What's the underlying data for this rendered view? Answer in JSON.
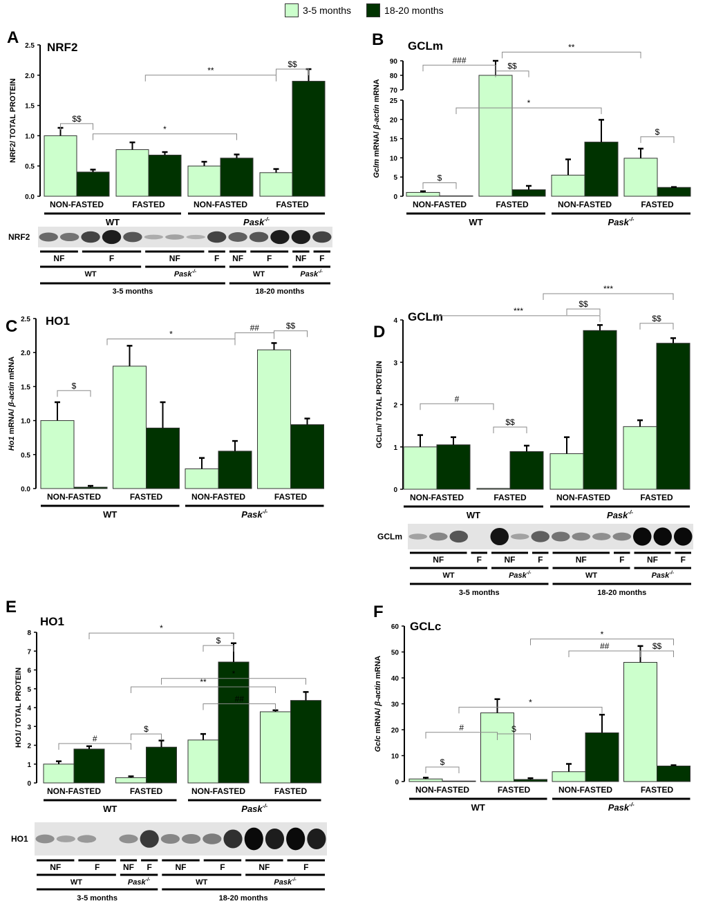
{
  "legend": {
    "items": [
      {
        "label": "3-5 months",
        "color": "#ccffcc"
      },
      {
        "label": "18-20 months",
        "color": "#003300"
      }
    ]
  },
  "colors": {
    "young": "#ccffcc",
    "old": "#003300",
    "bracket": "#888888"
  },
  "categories": [
    "NON-FASTED",
    "FASTED",
    "NON-FASTED",
    "FASTED"
  ],
  "genotypes": {
    "wt": "WT",
    "ko": "Pask",
    "ko_sup": "-/-"
  },
  "chart_data": [
    {
      "id": "A",
      "type": "bar",
      "letter": "A",
      "title": "NRF2",
      "ylabel": "NRF2/ TOTAL PROTEIN",
      "ylabel_italic": "",
      "ylim": [
        0,
        2.5
      ],
      "yticks": [
        "0.0",
        "0.5",
        "1.0",
        "1.5",
        "2.0",
        "2.5"
      ],
      "tickvals": [
        0,
        0.5,
        1,
        1.5,
        2,
        2.5
      ],
      "series": [
        {
          "name": "3-5 months",
          "values": [
            1.0,
            0.77,
            0.5,
            0.39
          ],
          "errors": [
            0.13,
            0.12,
            0.07,
            0.06
          ]
        },
        {
          "name": "18-20 months",
          "values": [
            0.4,
            0.68,
            0.63,
            1.9
          ],
          "errors": [
            0.04,
            0.05,
            0.06,
            0.2
          ]
        }
      ],
      "annotations": [
        {
          "label": "$$",
          "from": 0,
          "to": 1,
          "level": 1.2
        },
        {
          "label": "*",
          "from": 1,
          "to": 5,
          "level": 1.03
        },
        {
          "label": "**",
          "from": 2.4,
          "to": 6,
          "level": 2.0
        },
        {
          "label": "$$",
          "from": 6,
          "to": 7,
          "level": 2.1
        }
      ],
      "blot": {
        "label": "NRF2",
        "bands": [
          0.5,
          0.45,
          0.7,
          0.9,
          0.6,
          0.15,
          0.2,
          0.12,
          0.7,
          0.55,
          0.6,
          0.9,
          0.9,
          0.7
        ],
        "rows": [
          [
            {
              "label": "NF",
              "span": 2
            },
            {
              "label": "F",
              "span": 3
            },
            {
              "label": "NF",
              "span": 3
            },
            {
              "label": "F",
              "span": 1
            },
            {
              "label": "NF",
              "span": 1
            },
            {
              "label": "F",
              "span": 2
            },
            {
              "label": "NF",
              "span": 1
            },
            {
              "label": "F",
              "span": 1
            }
          ],
          [
            {
              "label": "WT",
              "span": 5
            },
            {
              "label": "Pask",
              "sup": "-/-",
              "span": 4
            },
            {
              "label": "WT",
              "span": 3
            },
            {
              "label": "Pask",
              "sup": "-/-",
              "span": 2
            }
          ],
          [
            {
              "label": "3-5 months",
              "span": 9
            },
            {
              "label": "18-20 months",
              "span": 5
            }
          ]
        ]
      }
    },
    {
      "id": "B",
      "type": "bar",
      "letter": "B",
      "title": "GCLm",
      "ylabel": " mRNA/ ",
      "ylabel_italic": "Gclm",
      "ylabel_italic2": "β-actin",
      "ylabel_tail": " mRNA",
      "ylim": [
        0,
        90
      ],
      "broken_axis": [
        25,
        70
      ],
      "yticks": [
        "0",
        "5",
        "10",
        "15",
        "20",
        "25",
        "70",
        "80",
        "90"
      ],
      "tickvals": [
        0,
        5,
        10,
        15,
        20,
        25,
        70,
        80,
        90
      ],
      "series": [
        {
          "name": "3-5 months",
          "values": [
            1.0,
            80,
            5.5,
            9.9
          ],
          "errors": [
            0.3,
            10,
            4.1,
            2.5
          ]
        },
        {
          "name": "18-20 months",
          "values": [
            0.1,
            1.7,
            14.1,
            2.3
          ],
          "errors": [
            0,
            1,
            5.8,
            0.1
          ]
        }
      ],
      "annotations": [
        {
          "label": "$",
          "from": 0,
          "to": 1,
          "level": 3.5
        },
        {
          "label": "###",
          "from": 0,
          "to": 2,
          "level": 87
        },
        {
          "label": "$$",
          "from": 2,
          "to": 3,
          "level": 83
        },
        {
          "label": "**",
          "from": 2.2,
          "to": 6,
          "level": 96
        },
        {
          "label": "*",
          "from": 1,
          "to": 5,
          "level": 23
        },
        {
          "label": "$",
          "from": 6,
          "to": 7,
          "level": 15.5
        }
      ]
    },
    {
      "id": "C",
      "type": "bar",
      "letter": "C",
      "title": "HO1",
      "ylabel": " mRNA/ ",
      "ylabel_italic": "Ho1",
      "ylabel_italic2": "β-actin",
      "ylabel_tail": " mRNA",
      "ylim": [
        0,
        2.5
      ],
      "yticks": [
        "0.0",
        "0.5",
        "1.0",
        "1.5",
        "2.0",
        "2.5"
      ],
      "tickvals": [
        0,
        0.5,
        1,
        1.5,
        2,
        2.5
      ],
      "series": [
        {
          "name": "3-5 months",
          "values": [
            1.0,
            1.8,
            0.29,
            2.04
          ],
          "errors": [
            0.27,
            0.3,
            0.16,
            0.1
          ]
        },
        {
          "name": "18-20 months",
          "values": [
            0.02,
            0.89,
            0.55,
            0.94
          ],
          "errors": [
            0.02,
            0.38,
            0.15,
            0.09
          ]
        }
      ],
      "annotations": [
        {
          "label": "$",
          "from": 0,
          "to": 1,
          "level": 1.44
        },
        {
          "label": "*",
          "from": 1.5,
          "to": 5,
          "level": 2.2
        },
        {
          "label": "##",
          "from": 5,
          "to": 6,
          "level": 2.29
        },
        {
          "label": "$$",
          "from": 6,
          "to": 7,
          "level": 2.32
        }
      ]
    },
    {
      "id": "D",
      "type": "bar",
      "letter": "D",
      "title": "GCLm",
      "ylabel": "GCLm/ TOTAL PROTEIN",
      "ylabel_italic": "",
      "ylim": [
        0,
        4
      ],
      "yticks": [
        "0",
        "1",
        "2",
        "3",
        "4"
      ],
      "tickvals": [
        0,
        1,
        2,
        3,
        4
      ],
      "series": [
        {
          "name": "3-5 months",
          "values": [
            1.0,
            0.02,
            0.84,
            1.48
          ],
          "errors": [
            0.28,
            0,
            0.39,
            0.15
          ]
        },
        {
          "name": "18-20 months",
          "values": [
            1.05,
            0.89,
            3.75,
            3.45
          ],
          "errors": [
            0.18,
            0.14,
            0.13,
            0.12
          ]
        }
      ],
      "annotations": [
        {
          "label": "#",
          "from": 0,
          "to": 2,
          "level": 2.02
        },
        {
          "label": "$$",
          "from": 2,
          "to": 3,
          "level": 1.47
        },
        {
          "label": "***",
          "from": 0.5,
          "to": 5,
          "level": 4.1
        },
        {
          "label": "$$",
          "from": 4,
          "to": 5,
          "level": 4.26
        },
        {
          "label": "$$",
          "from": 6,
          "to": 7,
          "level": 3.92
        },
        {
          "label": "***",
          "from": 3.5,
          "to": 7,
          "level": 4.62
        }
      ],
      "blot": {
        "label": "GCLm",
        "bands": [
          0.2,
          0.35,
          0.6,
          0.0,
          0.95,
          0.2,
          0.55,
          0.45,
          0.35,
          0.3,
          0.35,
          1,
          1,
          1
        ],
        "rows": [
          [
            {
              "label": "NF",
              "span": 3
            },
            {
              "label": "F",
              "span": 1
            },
            {
              "label": "NF",
              "span": 2
            },
            {
              "label": "F",
              "span": 1
            },
            {
              "label": "NF",
              "span": 3
            },
            {
              "label": "F",
              "span": 1
            },
            {
              "label": "NF",
              "span": 2
            },
            {
              "label": "F",
              "span": 1
            }
          ],
          [
            {
              "label": "WT",
              "span": 4
            },
            {
              "label": "Pask",
              "sup": "-/-",
              "span": 3
            },
            {
              "label": "WT",
              "span": 4
            },
            {
              "label": "Pask",
              "sup": "-/-",
              "span": 3
            }
          ],
          [
            {
              "label": "3-5 months",
              "span": 7
            },
            {
              "label": "18-20 months",
              "span": 7
            }
          ]
        ]
      }
    },
    {
      "id": "E",
      "type": "bar",
      "letter": "E",
      "title": "HO1",
      "ylabel": "HO1/ TOTAL PROTEIN",
      "ylabel_italic": "",
      "ylim": [
        0,
        8
      ],
      "yticks": [
        "0",
        "1",
        "2",
        "3",
        "4",
        "5",
        "6",
        "7",
        "8"
      ],
      "tickvals": [
        0,
        1,
        2,
        3,
        4,
        5,
        6,
        7,
        8
      ],
      "series": [
        {
          "name": "3-5 months",
          "values": [
            1.0,
            0.28,
            2.28,
            3.78
          ],
          "errors": [
            0.15,
            0.07,
            0.32,
            0.08
          ]
        },
        {
          "name": "18-20 months",
          "values": [
            1.8,
            1.9,
            6.42,
            4.38
          ],
          "errors": [
            0.15,
            0.35,
            1.0,
            0.45
          ]
        }
      ],
      "annotations": [
        {
          "label": "#",
          "from": 0,
          "to": 2,
          "level": 2.09
        },
        {
          "label": "$",
          "from": 2,
          "to": 3,
          "level": 2.6
        },
        {
          "label": "*",
          "from": 1,
          "to": 5,
          "level": 7.96
        },
        {
          "label": "$",
          "from": 4,
          "to": 5,
          "level": 7.3
        },
        {
          "label": "**",
          "from": 2,
          "to": 6,
          "level": 5.1
        },
        {
          "label": "*",
          "from": 3,
          "to": 7,
          "level": 5.55
        },
        {
          "label": "##",
          "from": 4,
          "to": 6,
          "level": 4.2
        }
      ],
      "blot": {
        "label": "HO1",
        "bands": [
          0.3,
          0.2,
          0.25,
          0.0,
          0.3,
          0.75,
          0.35,
          0.35,
          0.4,
          0.8,
          1,
          0.9,
          1,
          0.9
        ],
        "rows": [
          [
            {
              "label": "NF",
              "span": 2
            },
            {
              "label": "F",
              "span": 2
            },
            {
              "label": "NF",
              "span": 1
            },
            {
              "label": "F",
              "span": 1
            },
            {
              "label": "NF",
              "span": 2
            },
            {
              "label": "F",
              "span": 2
            },
            {
              "label": "NF",
              "span": 2
            },
            {
              "label": "F",
              "span": 2
            }
          ],
          [
            {
              "label": "WT",
              "span": 4
            },
            {
              "label": "Pask",
              "sup": "-/-",
              "span": 2
            },
            {
              "label": "WT",
              "span": 4
            },
            {
              "label": "Pask",
              "sup": "-/-",
              "span": 4
            }
          ],
          [
            {
              "label": "3-5 months",
              "span": 6
            },
            {
              "label": "18-20 months",
              "span": 8
            }
          ]
        ]
      }
    },
    {
      "id": "F",
      "type": "bar",
      "letter": "F",
      "title": "GCLc",
      "ylabel": " mRNA/ ",
      "ylabel_italic": "Gclc",
      "ylabel_italic2": "β-actin",
      "ylabel_tail": " mRNA",
      "ylim": [
        0,
        60
      ],
      "yticks": [
        "0",
        "10",
        "20",
        "30",
        "40",
        "50",
        "60"
      ],
      "tickvals": [
        0,
        10,
        20,
        30,
        40,
        50,
        60
      ],
      "series": [
        {
          "name": "3-5 months",
          "values": [
            1.0,
            26.5,
            3.8,
            46
          ],
          "errors": [
            0.5,
            5.3,
            3,
            6.3
          ]
        },
        {
          "name": "18-20 months",
          "values": [
            0.2,
            0.8,
            18.8,
            6
          ],
          "errors": [
            0,
            0.5,
            7,
            0.3
          ]
        }
      ],
      "annotations": [
        {
          "label": "$",
          "from": 0,
          "to": 1,
          "level": 5.6
        },
        {
          "label": "#",
          "from": 0,
          "to": 2,
          "level": 19
        },
        {
          "label": "$",
          "from": 2,
          "to": 3,
          "level": 18.4
        },
        {
          "label": "*",
          "from": 1,
          "to": 5,
          "level": 28.7
        },
        {
          "label": "##",
          "from": 4,
          "to": 6,
          "level": 50.4
        },
        {
          "label": "$$",
          "from": 6,
          "to": 7,
          "level": 50.4
        },
        {
          "label": "*",
          "from": 3,
          "to": 7,
          "level": 55
        }
      ]
    }
  ]
}
